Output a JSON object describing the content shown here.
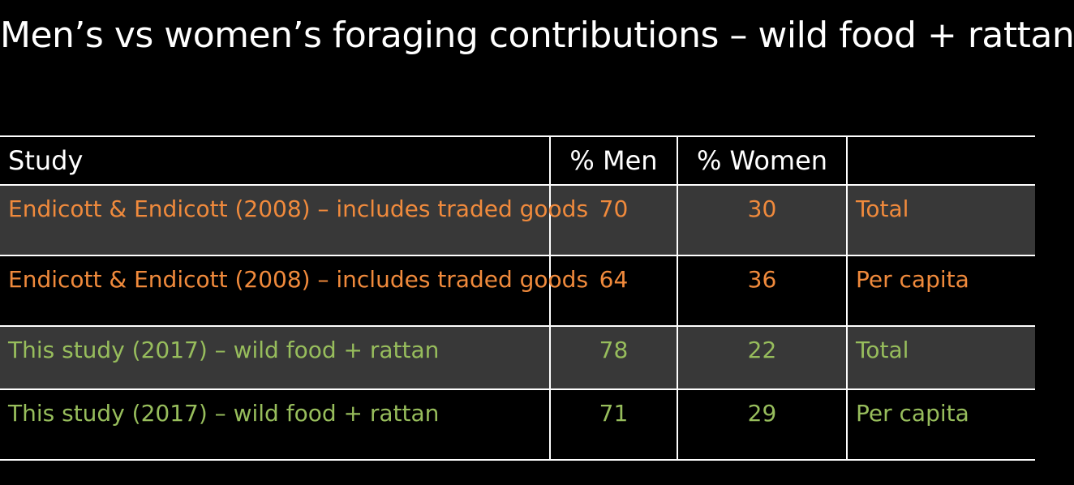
{
  "slide": {
    "title": "Men’s vs women’s foraging contributions – wild food + rattan"
  },
  "colors": {
    "background": "#000000",
    "header_text": "#ffffff",
    "endicott_rows": "#f08a3c",
    "this_study_rows": "#97bd5c",
    "gray_row": "#383838"
  },
  "table": {
    "headers": {
      "study": "Study",
      "men": "% Men",
      "women": "% Women",
      "note": ""
    },
    "rows": [
      {
        "study": "Endicott & Endicott (2008) – includes traded goods",
        "men": "70",
        "women": "30",
        "note": "Total"
      },
      {
        "study": "Endicott & Endicott (2008) – includes traded goods",
        "men": "64",
        "women": "36",
        "note": "Per capita"
      },
      {
        "study": "This study (2017) – wild food + rattan",
        "men": "78",
        "women": "22",
        "note": "Total"
      },
      {
        "study": "This study (2017) – wild food + rattan",
        "men": "71",
        "women": "29",
        "note": "Per capita"
      }
    ]
  }
}
